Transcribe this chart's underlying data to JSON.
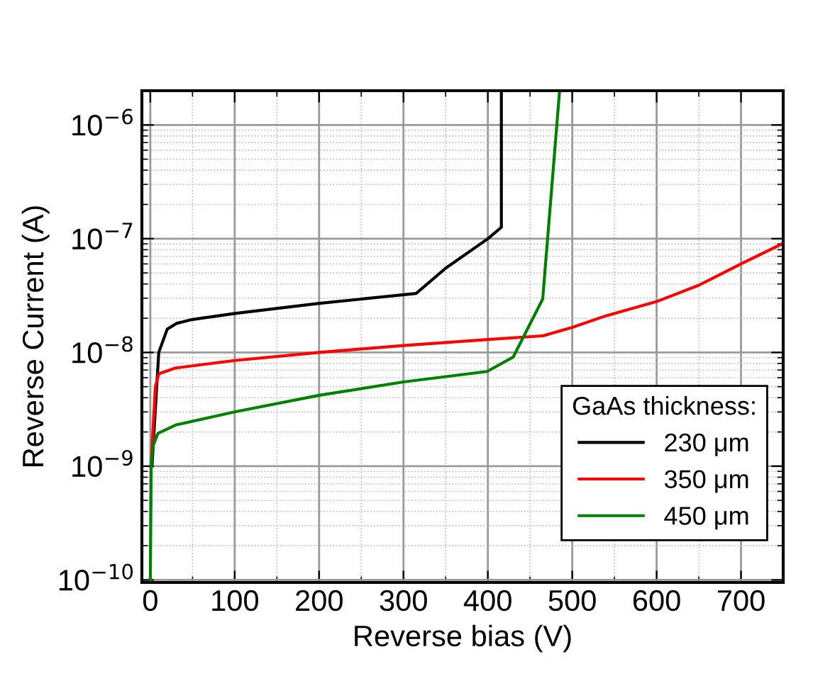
{
  "chart_data": {
    "type": "line",
    "xlabel": "Reverse bias (V)",
    "ylabel": "Reverse Current (A)",
    "legend_title": "GaAs thickness:",
    "log": "y",
    "grid": true,
    "legend": "bottom right",
    "line_style": "solid",
    "marker": "none",
    "xlim": [
      -10,
      750
    ],
    "ylim": [
      9.5e-11,
      2e-06
    ],
    "xticks": [
      0,
      100,
      200,
      300,
      400,
      500,
      600,
      700
    ],
    "yticks": [
      {
        "value": 1e-10,
        "label": "10$^{−10}$"
      },
      {
        "value": 1e-09,
        "label": "10$^{−9}$"
      },
      {
        "value": 1e-08,
        "label": "10$^{−8}$"
      },
      {
        "value": 1e-07,
        "label": "10$^{−7}$"
      },
      {
        "value": 1e-06,
        "label": "10$^{−6}$"
      }
    ],
    "series": [
      {
        "name": "230 μm",
        "color": "#000000",
        "x": [
          2,
          10,
          20,
          31,
          50,
          100,
          200,
          315,
          350,
          400,
          416,
          416
        ],
        "values": [
          1e-09,
          1e-08,
          1.6e-08,
          1.8e-08,
          1.95e-08,
          2.2e-08,
          2.7e-08,
          3.3e-08,
          5.5e-08,
          1e-07,
          1.26e-07,
          2e-06
        ]
      },
      {
        "name": "350 μm",
        "color": "#ff0000",
        "x": [
          1,
          3,
          6,
          10,
          30,
          100,
          200,
          300,
          400,
          465,
          500,
          540,
          600,
          650,
          700,
          750
        ],
        "values": [
          1e-09,
          2e-09,
          5e-09,
          6.5e-09,
          7.3e-09,
          8.5e-09,
          1e-08,
          1.15e-08,
          1.3e-08,
          1.4e-08,
          1.66e-08,
          2.1e-08,
          2.8e-08,
          3.9e-08,
          6e-08,
          9.1e-08
        ]
      },
      {
        "name": "450 μm",
        "color": "#008000",
        "x": [
          0,
          1,
          3,
          9,
          30,
          100,
          200,
          300,
          399,
          430,
          465,
          476,
          485
        ],
        "values": [
          9.5e-11,
          1e-09,
          1.5e-09,
          1.94e-09,
          2.3e-09,
          3e-09,
          4.2e-09,
          5.5e-09,
          6.8e-09,
          9.1e-09,
          2.95e-08,
          3e-07,
          2e-06
        ]
      }
    ]
  }
}
